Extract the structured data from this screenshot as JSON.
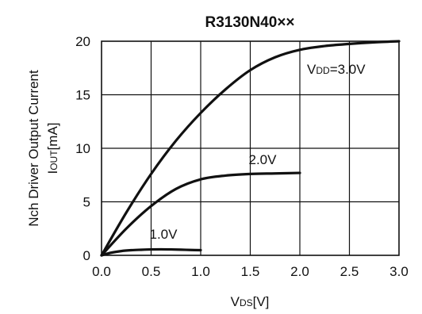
{
  "chart_data": {
    "type": "line",
    "title": "R3130N40××",
    "xlabel": {
      "main": "V",
      "sub": "DS",
      "unit": "[V]"
    },
    "ylabel": {
      "line1": "Nch Driver Output Current",
      "main": "I",
      "sub": "OUT",
      "unit": "[mA]"
    },
    "xlim": [
      0,
      3
    ],
    "ylim": [
      0,
      20
    ],
    "x_ticks": [
      "0.0",
      "0.5",
      "1.0",
      "1.5",
      "2.0",
      "2.5",
      "3.0"
    ],
    "y_ticks": [
      "0",
      "5",
      "10",
      "15",
      "20"
    ],
    "grid": true,
    "series": [
      {
        "label": {
          "main": "V",
          "sub": "DD",
          "rest": "=3.0V"
        },
        "x": [
          0,
          0.25,
          0.5,
          0.75,
          1.0,
          1.25,
          1.5,
          1.75,
          2.0,
          2.25,
          2.5,
          2.75,
          3.0
        ],
        "y": [
          0,
          4.0,
          7.6,
          10.7,
          13.3,
          15.5,
          17.3,
          18.5,
          19.2,
          19.55,
          19.75,
          19.9,
          20.0
        ]
      },
      {
        "label": {
          "main": "2.0V"
        },
        "x": [
          0,
          0.25,
          0.5,
          0.75,
          1.0,
          1.25,
          1.5,
          1.75,
          2.0
        ],
        "y": [
          0,
          2.5,
          4.6,
          6.2,
          7.1,
          7.45,
          7.6,
          7.65,
          7.7
        ]
      },
      {
        "label": {
          "main": "1.0V"
        },
        "x": [
          0,
          0.1,
          0.2,
          0.3,
          0.4,
          0.5,
          0.6,
          0.7,
          0.8,
          0.9,
          1.0
        ],
        "y": [
          0,
          0.25,
          0.4,
          0.48,
          0.52,
          0.55,
          0.56,
          0.55,
          0.53,
          0.5,
          0.48
        ]
      }
    ]
  }
}
